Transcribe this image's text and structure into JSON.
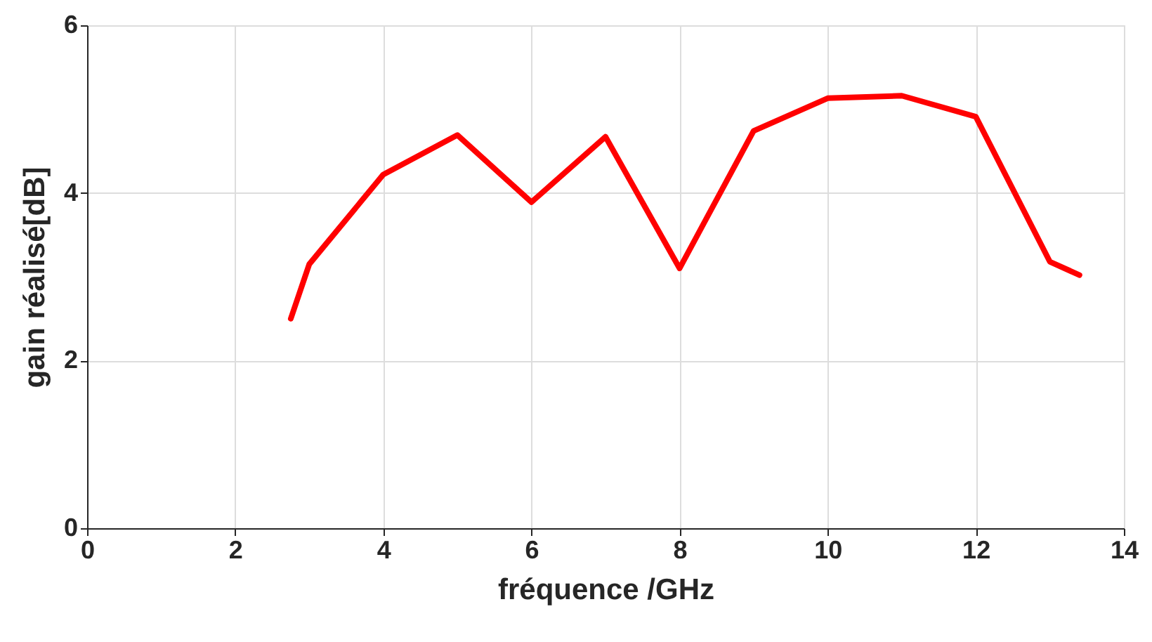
{
  "chart_data": {
    "type": "line",
    "xlabel": "fréquence /GHz",
    "ylabel": "gain réalisé[dB]",
    "x": [
      2.75,
      3,
      4,
      5,
      6,
      7,
      8,
      9,
      10,
      11,
      12,
      13,
      13.4
    ],
    "series": [
      {
        "color": "#ff0000",
        "values": [
          2.5,
          3.15,
          4.22,
          4.69,
          3.89,
          4.67,
          3.1,
          4.74,
          5.13,
          5.16,
          4.91,
          3.18,
          3.02
        ]
      }
    ],
    "xlim": [
      0,
      14
    ],
    "xticks": [
      0,
      2,
      4,
      6,
      8,
      10,
      12,
      14
    ],
    "ylim": [
      0,
      6
    ],
    "yticks": [
      0,
      2,
      4,
      6
    ],
    "grid": true,
    "line_style": "solid",
    "marker": "none"
  }
}
